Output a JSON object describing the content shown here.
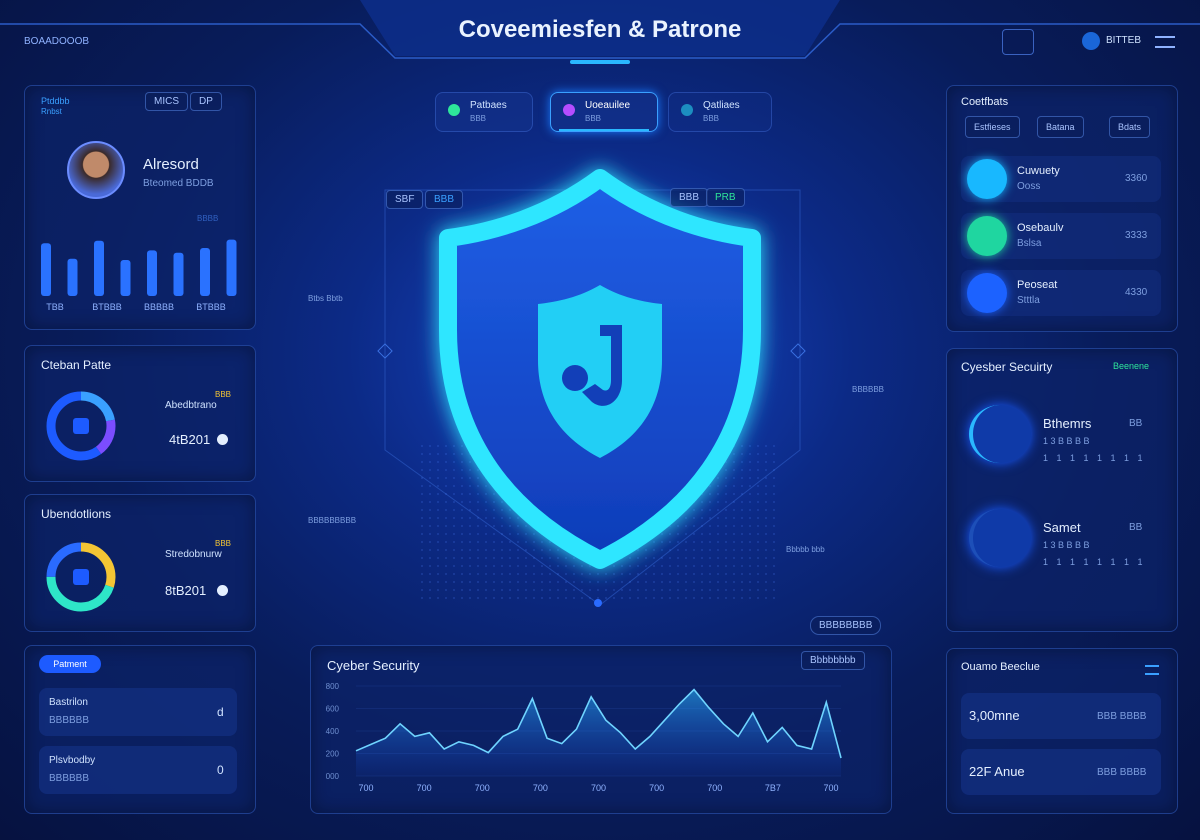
{
  "header": {
    "brand": "BOAADOOOB",
    "title": "Coveemiesfen & Patrone",
    "user": "BITTEB"
  },
  "profile": {
    "tag": "Ptddbb",
    "tag_sub": "Rnbst",
    "buttons": [
      "MICS",
      "DP"
    ],
    "name": "Alresord",
    "sub": "Bteomed  BDDB",
    "side": "BBBB",
    "bars": {
      "values": [
        88,
        62,
        92,
        60,
        76,
        72,
        80,
        94
      ],
      "ylim": [
        0,
        100
      ],
      "labels": [
        "TBB",
        "BTBBB",
        "BBBBB",
        "BTBBB"
      ]
    }
  },
  "stats": [
    {
      "title": "Cteban Patte",
      "badge": "BBB",
      "label": "Abedbtrano",
      "value": "4tB201",
      "donut": [
        22,
        18,
        60
      ],
      "colors": [
        "#3aa0ff",
        "#7b4dff",
        "#1d5bff"
      ]
    },
    {
      "title": "Ubendotlions",
      "badge": "BBB",
      "label": "Stredobnurw",
      "value": "8tB201",
      "donut": [
        30,
        45,
        25
      ],
      "colors": [
        "#f4c534",
        "#2ee6c8",
        "#2a6bff"
      ]
    }
  ],
  "payments": {
    "button": "Patment",
    "rows": [
      {
        "label": "Bastrilon",
        "sub": "BBBBBB",
        "icon": "d"
      },
      {
        "label": "Plsvbodby",
        "sub": "BBBBBB",
        "icon": "0"
      }
    ]
  },
  "tabs": [
    {
      "label": "Patbaes",
      "sub": "BBB"
    },
    {
      "label": "Uoeauilee",
      "sub": "BBB"
    },
    {
      "label": "Qatliaes",
      "sub": "BBB"
    }
  ],
  "shield": {
    "chips_left": [
      "SBF",
      "BBB"
    ],
    "chips_right": [
      "BBB",
      "PRB"
    ],
    "left_note": "Btbs Bbtb",
    "right_note": "BBBBBB",
    "bottom_left": "BBBBBBBBB",
    "bottom_right": "Bbbbb bbb",
    "chip": "BBBBBBBB"
  },
  "trend": {
    "title": "Cyeber Security",
    "button": "Bbbbbbbb",
    "ylim": [
      0,
      100
    ],
    "yticks": [
      {
        "value": 100,
        "label": "800"
      },
      {
        "value": 75,
        "label": "600"
      },
      {
        "value": 50,
        "label": "400"
      },
      {
        "value": 25,
        "label": "200"
      },
      {
        "value": 0,
        "label": "000"
      }
    ],
    "values": [
      28,
      35,
      42,
      58,
      44,
      48,
      30,
      38,
      34,
      26,
      44,
      52,
      86,
      42,
      36,
      52,
      88,
      62,
      48,
      30,
      44,
      62,
      80,
      96,
      76,
      58,
      44,
      70,
      38,
      54,
      34,
      30,
      82,
      20
    ],
    "xlabels": [
      "700",
      "700",
      "700",
      "700",
      "700",
      "700",
      "700",
      "7B7",
      "700"
    ]
  },
  "contacts": {
    "title": "Coetfbats",
    "tabs": [
      "Estfieses",
      "Batana",
      "Bdats"
    ],
    "items": [
      {
        "name": "Cuwuety",
        "sub": "Ooss",
        "value": "3360",
        "color": "#18b8ff"
      },
      {
        "name": "Osebaulv",
        "sub": "Bslsa",
        "value": "3333",
        "color": "#1fd6a0"
      },
      {
        "name": "Peoseat",
        "sub": "Stttla",
        "value": "4330",
        "color": "#1c62ff"
      }
    ]
  },
  "security": {
    "title": "Cyesber Secuirty",
    "link": "Beenene",
    "items": [
      {
        "name": "Bthemrs",
        "badge": "BB",
        "line1": "1 3 B B B B",
        "line2": "1 1 1 1 1 1 1 1"
      },
      {
        "name": "Samet",
        "badge": "BB",
        "line1": "1 3 B B B B",
        "line2": "1 1 1 1 1 1 1 1"
      }
    ]
  },
  "summary": {
    "title": "Ouamo Beeclue",
    "rows": [
      {
        "label": "3,00mne",
        "value": "BBB BBBB"
      },
      {
        "label": "22F Anue",
        "value": "BBB BBBB"
      }
    ]
  }
}
